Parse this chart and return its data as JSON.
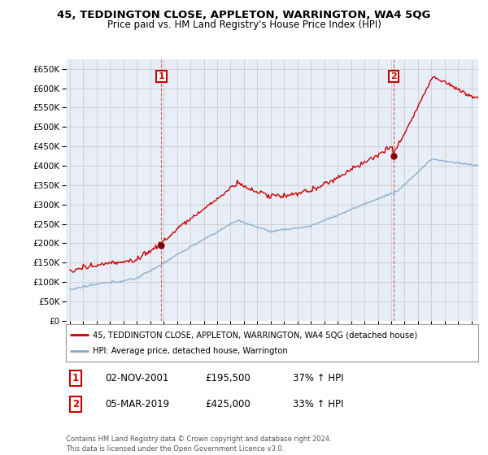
{
  "title": "45, TEDDINGTON CLOSE, APPLETON, WARRINGTON, WA4 5QG",
  "subtitle": "Price paid vs. HM Land Registry's House Price Index (HPI)",
  "sale1_date": "02-NOV-2001",
  "sale1_price": 195500,
  "sale1_pct": "37%",
  "sale2_date": "05-MAR-2019",
  "sale2_price": 425000,
  "sale2_pct": "33%",
  "legend_line1": "45, TEDDINGTON CLOSE, APPLETON, WARRINGTON, WA4 5QG (detached house)",
  "legend_line2": "HPI: Average price, detached house, Warrington",
  "footer": "Contains HM Land Registry data © Crown copyright and database right 2024.\nThis data is licensed under the Open Government Licence v3.0.",
  "house_color": "#cc0000",
  "hpi_color": "#7faacc",
  "grid_color": "#cccccc",
  "background_color": "#ffffff",
  "plot_bg_color": "#e8eef8",
  "sale_line_color": "#cc0000",
  "ylim_min": 0,
  "ylim_max": 675000,
  "ytick_step": 50000,
  "start_year": 1995,
  "end_year": 2025
}
